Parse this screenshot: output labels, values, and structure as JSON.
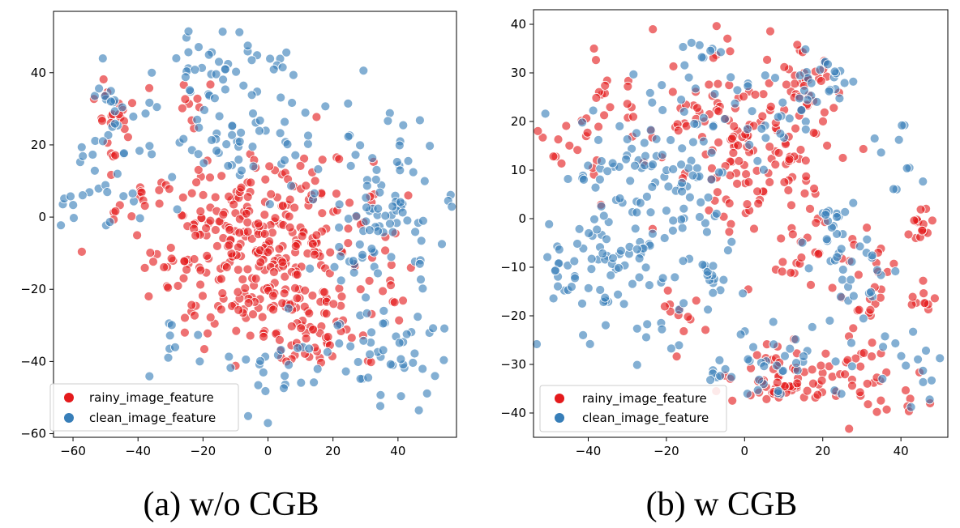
{
  "colors": {
    "rainy": "#e41a1c",
    "clean": "#377eb8"
  },
  "chart_data": [
    {
      "type": "scatter",
      "caption": "(a) w/o CGB",
      "xlim": [
        -66,
        58
      ],
      "ylim": [
        -61,
        57
      ],
      "xticks": [
        -60,
        -40,
        -20,
        0,
        20,
        40
      ],
      "yticks": [
        -60,
        -40,
        -20,
        0,
        20,
        40
      ],
      "legend_position": "lower-left",
      "grid": false,
      "series": [
        {
          "name": "rainy_image_feature",
          "color_key": "rainy"
        },
        {
          "name": "clean_image_feature",
          "color_key": "clean"
        }
      ]
    },
    {
      "type": "scatter",
      "caption": "(b) w CGB",
      "xlim": [
        -54,
        52
      ],
      "ylim": [
        -45,
        43
      ],
      "xticks": [
        -40,
        -20,
        0,
        20,
        40
      ],
      "yticks": [
        -40,
        -30,
        -20,
        -10,
        0,
        10,
        20,
        30,
        40
      ],
      "legend_position": "lower-left",
      "grid": false,
      "series": [
        {
          "name": "rainy_image_feature",
          "color_key": "rainy"
        },
        {
          "name": "clean_image_feature",
          "color_key": "clean"
        }
      ]
    }
  ]
}
